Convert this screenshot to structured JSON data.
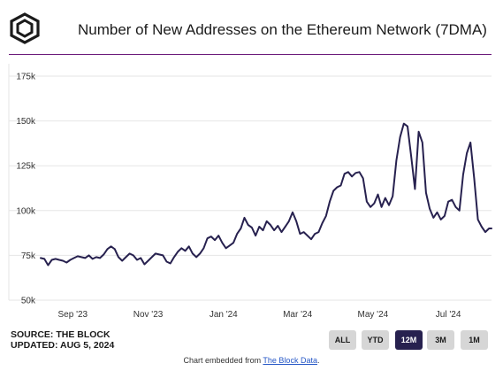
{
  "header": {
    "logo_icon": "the-block-cube-icon",
    "title": "Number of New Addresses on the Ethereum Network (7DMA)"
  },
  "footer": {
    "source": "SOURCE: THE BLOCK",
    "updated": "UPDATED: AUG 5, 2024",
    "embed_prefix": "Chart embedded from ",
    "embed_link": "The Block Data",
    "embed_suffix": "."
  },
  "range_buttons": [
    {
      "label": "ALL",
      "active": false
    },
    {
      "label": "YTD",
      "active": false
    },
    {
      "label": "12M",
      "active": true
    },
    {
      "label": "3M",
      "active": false
    },
    {
      "label": "1M",
      "active": false
    }
  ],
  "colors": {
    "line": "#27214f",
    "accent_rule": "#6b1a7a",
    "active_button": "#27214f",
    "grid": "#e6e6e6"
  },
  "chart_data": {
    "type": "line",
    "title": "Number of New Addresses on the Ethereum Network (7DMA)",
    "xlabel": "",
    "ylabel": "",
    "ylim": [
      50000,
      175000
    ],
    "y_ticks": [
      {
        "value": 50000,
        "label": "50k"
      },
      {
        "value": 75000,
        "label": "75k"
      },
      {
        "value": 100000,
        "label": "100k"
      },
      {
        "value": 125000,
        "label": "125k"
      },
      {
        "value": 150000,
        "label": "150k"
      },
      {
        "value": 175000,
        "label": "175k"
      }
    ],
    "xlim": [
      "2023-08-06",
      "2024-08-05"
    ],
    "x_ticks": [
      {
        "date": "2023-09-01",
        "label": "Sep '23"
      },
      {
        "date": "2023-11-01",
        "label": "Nov '23"
      },
      {
        "date": "2024-01-01",
        "label": "Jan '24"
      },
      {
        "date": "2024-03-01",
        "label": "Mar '24"
      },
      {
        "date": "2024-05-01",
        "label": "May '24"
      },
      {
        "date": "2024-07-01",
        "label": "Jul '24"
      }
    ],
    "grid": true,
    "series": [
      {
        "points": [
          [
            "2023-08-06",
            73500
          ],
          [
            "2023-08-09",
            73000
          ],
          [
            "2023-08-12",
            69500
          ],
          [
            "2023-08-15",
            72500
          ],
          [
            "2023-08-18",
            73000
          ],
          [
            "2023-08-21",
            72500
          ],
          [
            "2023-08-24",
            72000
          ],
          [
            "2023-08-27",
            71000
          ],
          [
            "2023-08-30",
            72500
          ],
          [
            "2023-09-02",
            73500
          ],
          [
            "2023-09-05",
            74500
          ],
          [
            "2023-09-08",
            74000
          ],
          [
            "2023-09-11",
            73500
          ],
          [
            "2023-09-14",
            75000
          ],
          [
            "2023-09-17",
            73000
          ],
          [
            "2023-09-20",
            74000
          ],
          [
            "2023-09-23",
            73500
          ],
          [
            "2023-09-26",
            75500
          ],
          [
            "2023-09-29",
            78500
          ],
          [
            "2023-10-02",
            80000
          ],
          [
            "2023-10-05",
            78500
          ],
          [
            "2023-10-08",
            74000
          ],
          [
            "2023-10-11",
            72000
          ],
          [
            "2023-10-14",
            74000
          ],
          [
            "2023-10-17",
            76000
          ],
          [
            "2023-10-20",
            75000
          ],
          [
            "2023-10-23",
            72500
          ],
          [
            "2023-10-26",
            73500
          ],
          [
            "2023-10-29",
            70000
          ],
          [
            "2023-11-01",
            72000
          ],
          [
            "2023-11-04",
            74000
          ],
          [
            "2023-11-07",
            76000
          ],
          [
            "2023-11-10",
            75500
          ],
          [
            "2023-11-13",
            75000
          ],
          [
            "2023-11-16",
            71500
          ],
          [
            "2023-11-19",
            70500
          ],
          [
            "2023-11-22",
            74000
          ],
          [
            "2023-11-25",
            77000
          ],
          [
            "2023-11-28",
            79000
          ],
          [
            "2023-12-01",
            77500
          ],
          [
            "2023-12-04",
            80000
          ],
          [
            "2023-12-07",
            76000
          ],
          [
            "2023-12-10",
            74000
          ],
          [
            "2023-12-13",
            76000
          ],
          [
            "2023-12-16",
            79000
          ],
          [
            "2023-12-19",
            84500
          ],
          [
            "2023-12-22",
            85500
          ],
          [
            "2023-12-25",
            83500
          ],
          [
            "2023-12-28",
            86000
          ],
          [
            "2023-12-31",
            82000
          ],
          [
            "2024-01-03",
            79000
          ],
          [
            "2024-01-06",
            80500
          ],
          [
            "2024-01-09",
            82000
          ],
          [
            "2024-01-12",
            87000
          ],
          [
            "2024-01-15",
            90000
          ],
          [
            "2024-01-18",
            96000
          ],
          [
            "2024-01-21",
            92000
          ],
          [
            "2024-01-24",
            90500
          ],
          [
            "2024-01-27",
            86000
          ],
          [
            "2024-01-30",
            91000
          ],
          [
            "2024-02-02",
            89000
          ],
          [
            "2024-02-05",
            94000
          ],
          [
            "2024-02-08",
            92000
          ],
          [
            "2024-02-11",
            89000
          ],
          [
            "2024-02-14",
            91500
          ],
          [
            "2024-02-17",
            88000
          ],
          [
            "2024-02-20",
            91000
          ],
          [
            "2024-02-23",
            94000
          ],
          [
            "2024-02-26",
            99000
          ],
          [
            "2024-02-29",
            94000
          ],
          [
            "2024-03-03",
            87000
          ],
          [
            "2024-03-06",
            88000
          ],
          [
            "2024-03-09",
            86000
          ],
          [
            "2024-03-12",
            84000
          ],
          [
            "2024-03-15",
            87000
          ],
          [
            "2024-03-18",
            88000
          ],
          [
            "2024-03-21",
            93000
          ],
          [
            "2024-03-24",
            97000
          ],
          [
            "2024-03-27",
            105000
          ],
          [
            "2024-03-30",
            111000
          ],
          [
            "2024-04-02",
            113000
          ],
          [
            "2024-04-05",
            114000
          ],
          [
            "2024-04-08",
            120500
          ],
          [
            "2024-04-11",
            121500
          ],
          [
            "2024-04-14",
            119000
          ],
          [
            "2024-04-17",
            121000
          ],
          [
            "2024-04-20",
            121500
          ],
          [
            "2024-04-23",
            118000
          ],
          [
            "2024-04-26",
            105000
          ],
          [
            "2024-04-29",
            102000
          ],
          [
            "2024-05-02",
            104000
          ],
          [
            "2024-05-05",
            109000
          ],
          [
            "2024-05-08",
            102000
          ],
          [
            "2024-05-11",
            107000
          ],
          [
            "2024-05-14",
            103000
          ],
          [
            "2024-05-17",
            108000
          ],
          [
            "2024-05-20",
            128000
          ],
          [
            "2024-05-23",
            141000
          ],
          [
            "2024-05-26",
            148500
          ],
          [
            "2024-05-29",
            147000
          ],
          [
            "2024-06-01",
            130000
          ],
          [
            "2024-06-04",
            112000
          ],
          [
            "2024-06-07",
            144000
          ],
          [
            "2024-06-10",
            138000
          ],
          [
            "2024-06-13",
            110000
          ],
          [
            "2024-06-16",
            101000
          ],
          [
            "2024-06-19",
            96000
          ],
          [
            "2024-06-22",
            99000
          ],
          [
            "2024-06-25",
            95000
          ],
          [
            "2024-06-28",
            97000
          ],
          [
            "2024-07-01",
            105000
          ],
          [
            "2024-07-04",
            106000
          ],
          [
            "2024-07-07",
            102000
          ],
          [
            "2024-07-10",
            100000
          ],
          [
            "2024-07-13",
            120000
          ],
          [
            "2024-07-16",
            132000
          ],
          [
            "2024-07-19",
            138000
          ],
          [
            "2024-07-22",
            118000
          ],
          [
            "2024-07-25",
            95000
          ],
          [
            "2024-07-28",
            91000
          ],
          [
            "2024-07-31",
            88000
          ],
          [
            "2024-08-03",
            90000
          ],
          [
            "2024-08-05",
            90000
          ]
        ]
      }
    ]
  }
}
